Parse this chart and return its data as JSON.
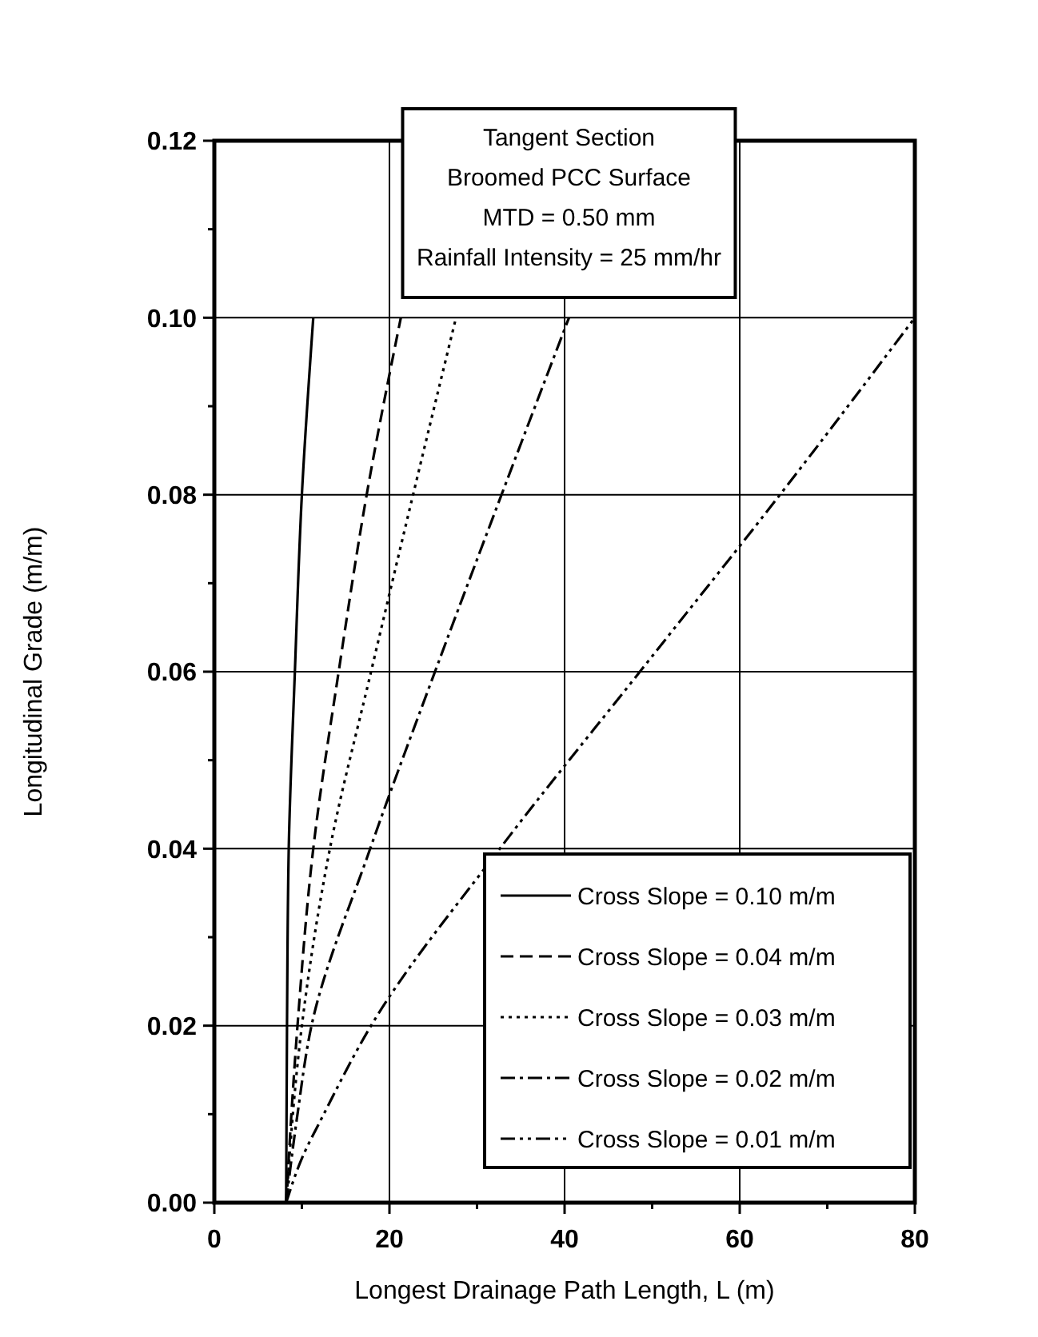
{
  "chart_data": {
    "type": "line",
    "xlabel": "Longest Drainage Path Length, L (m)",
    "ylabel": "Longitudinal Grade (m/m)",
    "annotations": [
      "Tangent Section",
      "Broomed PCC Surface",
      "MTD = 0.50 mm",
      "Rainfall Intensity = 25 mm/hr"
    ],
    "xlim": [
      0,
      80
    ],
    "ylim": [
      0,
      0.12
    ],
    "xticks": [
      0,
      {
        "value": 10,
        "label": null
      },
      20,
      {
        "value": 30,
        "label": null
      },
      40,
      {
        "value": 50,
        "label": null
      },
      60,
      {
        "value": 70,
        "label": null
      },
      80
    ],
    "yticks": [
      {
        "value": 0,
        "label": "0.00"
      },
      {
        "value": 0.01,
        "label": null
      },
      {
        "value": 0.02,
        "label": "0.02"
      },
      {
        "value": 0.03,
        "label": null
      },
      {
        "value": 0.04,
        "label": "0.04"
      },
      {
        "value": 0.05,
        "label": null
      },
      {
        "value": 0.06,
        "label": "0.06"
      },
      {
        "value": 0.07,
        "label": null
      },
      {
        "value": 0.08,
        "label": "0.08"
      },
      {
        "value": 0.09,
        "label": null
      },
      {
        "value": 0.1,
        "label": "0.10"
      },
      {
        "value": 0.11,
        "label": null
      },
      {
        "value": 0.12,
        "label": "0.12"
      }
    ],
    "grid": true,
    "legend": "bottom right",
    "series": [
      {
        "name": "Cross Slope = 0.10 m/m",
        "color": "#000000",
        "line_style": "solid",
        "x": [
          8.2,
          8.3,
          8.5,
          9.2,
          10.0,
          11.3
        ],
        "values": [
          0,
          0.02,
          0.04,
          0.06,
          0.08,
          0.1
        ]
      },
      {
        "name": "Cross Slope = 0.04 m/m",
        "color": "#000000",
        "line_style": "dashed",
        "x": [
          8.2,
          9.5,
          11.3,
          14.2,
          17.4,
          21.3
        ],
        "values": [
          0,
          0.02,
          0.04,
          0.06,
          0.08,
          0.1
        ]
      },
      {
        "name": "Cross Slope = 0.03 m/m",
        "color": "#000000",
        "line_style": "dotted",
        "x": [
          8.2,
          10.0,
          13.2,
          17.9,
          22.7,
          27.6
        ],
        "values": [
          0,
          0.02,
          0.04,
          0.06,
          0.08,
          0.1
        ]
      },
      {
        "name": "Cross Slope = 0.02 m/m",
        "color": "#000000",
        "line_style": "dashdot",
        "x": [
          8.2,
          9.5,
          11.1,
          17.8,
          25.2,
          32.8,
          40.5
        ],
        "values": [
          0,
          0.01,
          0.02,
          0.04,
          0.06,
          0.08,
          0.1
        ]
      },
      {
        "name": "Cross Slope = 0.01 m/m",
        "color": "#000000",
        "line_style": "dashdotdot",
        "x": [
          8.2,
          10.0,
          12.5,
          17.9,
          32.6,
          48.6,
          64.6,
          80
        ],
        "values": [
          0,
          0.005,
          0.01,
          0.02,
          0.04,
          0.06,
          0.08,
          0.1
        ]
      }
    ]
  }
}
